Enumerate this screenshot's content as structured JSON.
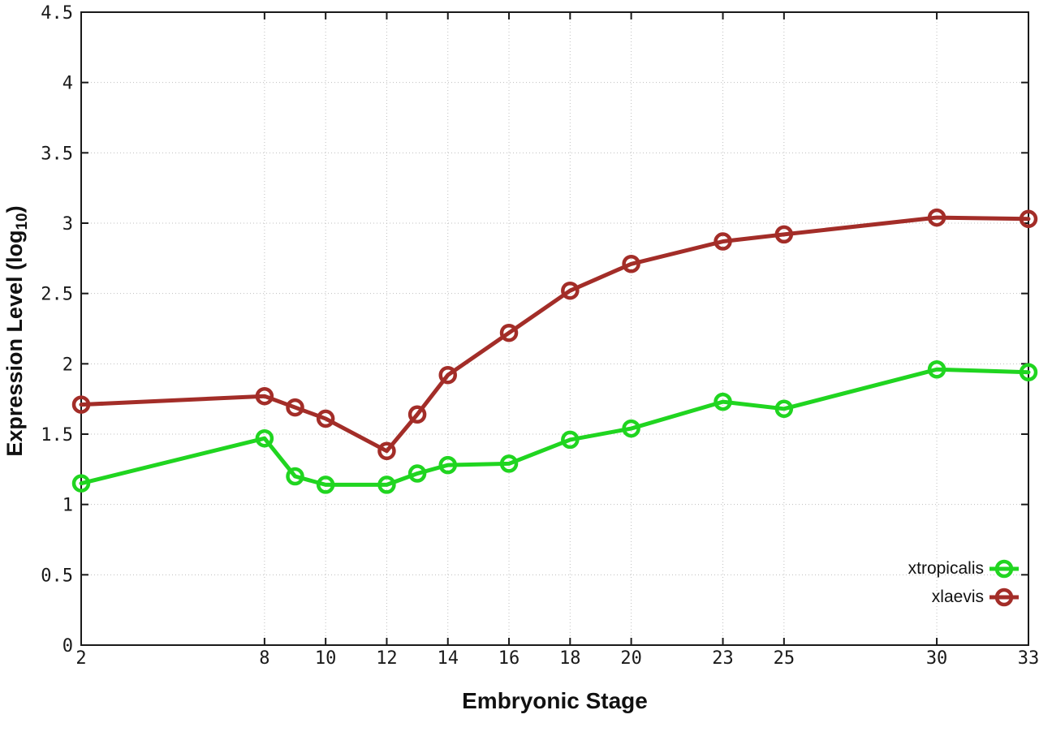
{
  "chart_data": {
    "type": "line",
    "x": [
      2,
      8,
      9,
      10,
      12,
      13,
      14,
      16,
      18,
      20,
      23,
      25,
      30,
      33
    ],
    "series": [
      {
        "name": "xtropicalis",
        "color": "#20d520",
        "values": [
          1.15,
          1.47,
          1.2,
          1.14,
          1.14,
          1.22,
          1.28,
          1.29,
          1.46,
          1.54,
          1.73,
          1.68,
          1.96,
          1.94
        ]
      },
      {
        "name": "xlaevis",
        "color": "#a32d28",
        "values": [
          1.71,
          1.77,
          1.69,
          1.61,
          1.38,
          1.64,
          1.92,
          2.22,
          2.52,
          2.71,
          2.87,
          2.92,
          3.04,
          3.03
        ]
      }
    ],
    "title": "",
    "xlabel": "Embryonic Stage",
    "ylabel": "Expression Level (log10)",
    "ylabel_parts": {
      "main": "Expression Level (log",
      "sub": "10",
      "end": ")"
    },
    "xlim": [
      2,
      33
    ],
    "ylim": [
      0,
      4.5
    ],
    "xticks": {
      "values": [
        2,
        8,
        10,
        12,
        14,
        16,
        18,
        20,
        23,
        25,
        30,
        33
      ],
      "labels": [
        "2",
        "8",
        "10",
        "12",
        "14",
        "16",
        "18",
        "20",
        "23",
        "25",
        "30",
        "33"
      ]
    },
    "yticks": {
      "values": [
        0,
        0.5,
        1,
        1.5,
        2,
        2.5,
        3,
        3.5,
        4,
        4.5
      ],
      "labels": [
        "0",
        "0.5",
        "1",
        "1.5",
        "2",
        "2.5",
        "3",
        "3.5",
        "4",
        "4.5"
      ]
    },
    "grid": true,
    "legend_position": "bottom-right",
    "background": "#ffffff",
    "axis_color": "#1a1a1a",
    "grid_color": "#bfbfbf",
    "tick_label_color": "#1a1a1a"
  }
}
